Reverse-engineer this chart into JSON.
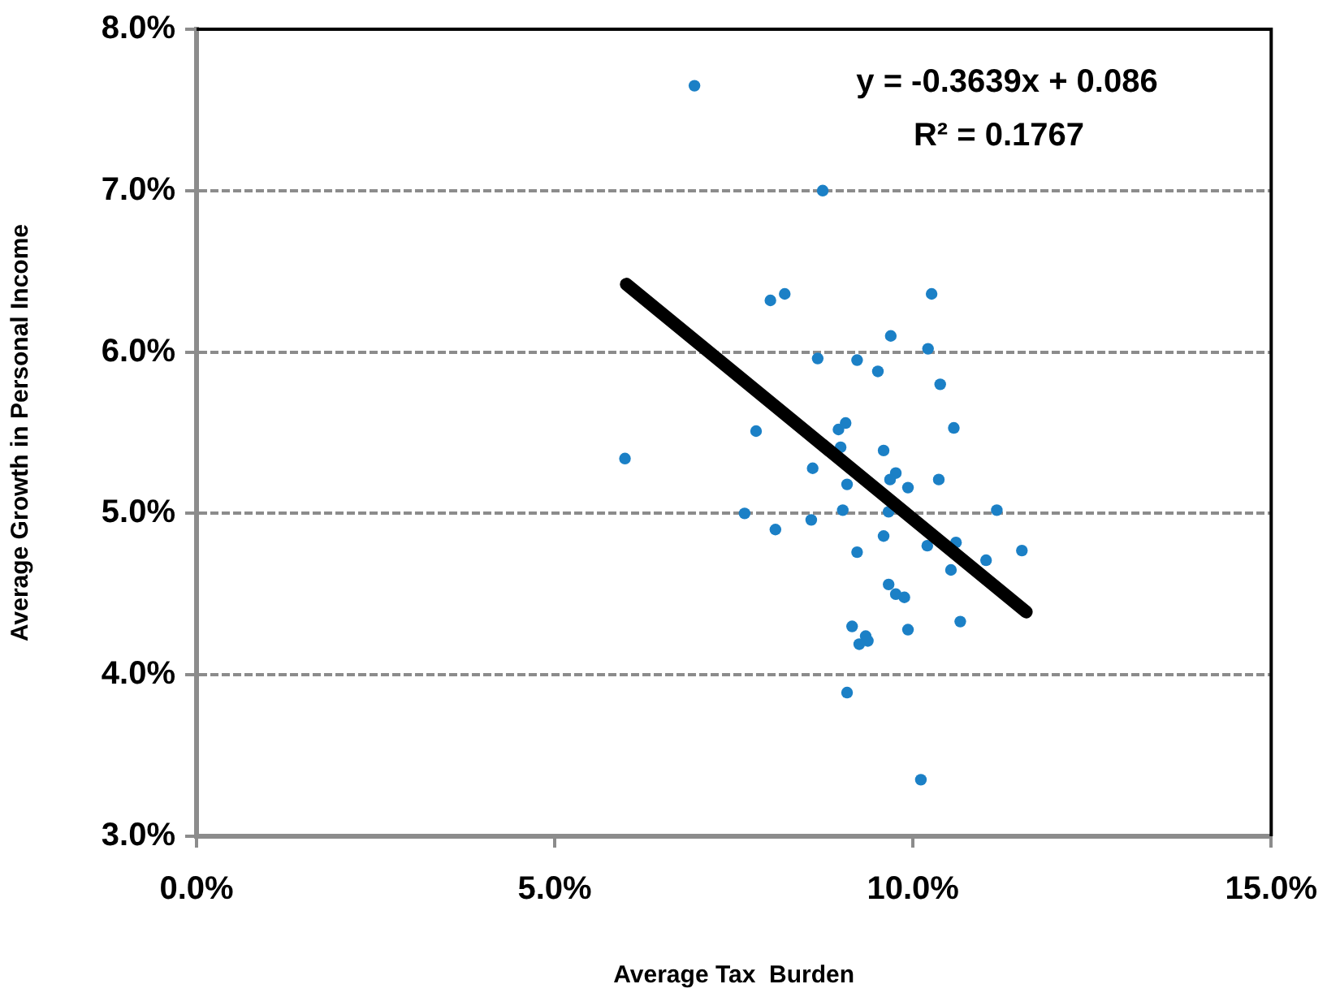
{
  "chart_data": {
    "type": "scatter",
    "xlabel": "Average Tax  Burden",
    "ylabel": "Average Growth in Personal Income",
    "xlim": [
      0,
      15
    ],
    "xticks": [
      {
        "value": 0,
        "label": "0.0%"
      },
      {
        "value": 5,
        "label": "5.0%"
      },
      {
        "value": 10,
        "label": "10.0%"
      },
      {
        "value": 15,
        "label": "15.0%"
      }
    ],
    "ylim": [
      3,
      8
    ],
    "yticks": [
      {
        "value": 3,
        "label": "3.0%"
      },
      {
        "value": 4,
        "label": "4.0%"
      },
      {
        "value": 5,
        "label": "5.0%"
      },
      {
        "value": 6,
        "label": "6.0%"
      },
      {
        "value": 7,
        "label": "7.0%"
      },
      {
        "value": 8,
        "label": "8.0%"
      }
    ],
    "grid": "y",
    "legend": false,
    "marker": "circle",
    "annotations": [
      "y = -0.3639x + 0.086",
      "R² = 0.1767"
    ],
    "series": [
      {
        "color": "#1b80c6",
        "x": [
          6.95,
          8.74,
          8.01,
          8.21,
          10.26,
          9.69,
          10.21,
          8.67,
          9.22,
          9.51,
          10.38,
          7.81,
          8.96,
          9.06,
          10.57,
          5.98,
          8.99,
          9.59,
          8.6,
          9.76,
          9.68,
          10.36,
          9.08,
          9.93,
          7.65,
          9.02,
          9.66,
          11.17,
          8.58,
          8.08,
          9.59,
          10.6,
          10.2,
          11.52,
          9.22,
          11.02,
          10.53,
          9.66,
          9.76,
          9.88,
          10.66,
          9.15,
          9.93,
          9.34,
          9.37,
          9.25,
          9.08,
          10.11
        ],
        "values": [
          7.65,
          7.0,
          6.32,
          6.36,
          6.36,
          6.1,
          6.02,
          5.96,
          5.95,
          5.88,
          5.8,
          5.51,
          5.52,
          5.56,
          5.53,
          5.34,
          5.41,
          5.39,
          5.28,
          5.25,
          5.21,
          5.21,
          5.18,
          5.16,
          5.0,
          5.02,
          5.01,
          5.02,
          4.96,
          4.9,
          4.86,
          4.82,
          4.8,
          4.77,
          4.76,
          4.71,
          4.65,
          4.56,
          4.5,
          4.48,
          4.33,
          4.3,
          4.28,
          4.24,
          4.21,
          4.19,
          3.89,
          3.35
        ]
      },
      {
        "type": "line",
        "color": "#000000",
        "x": [
          6.0,
          11.58
        ],
        "values": [
          6.42,
          4.39
        ],
        "marker": "none",
        "line_style": "solid"
      }
    ]
  }
}
